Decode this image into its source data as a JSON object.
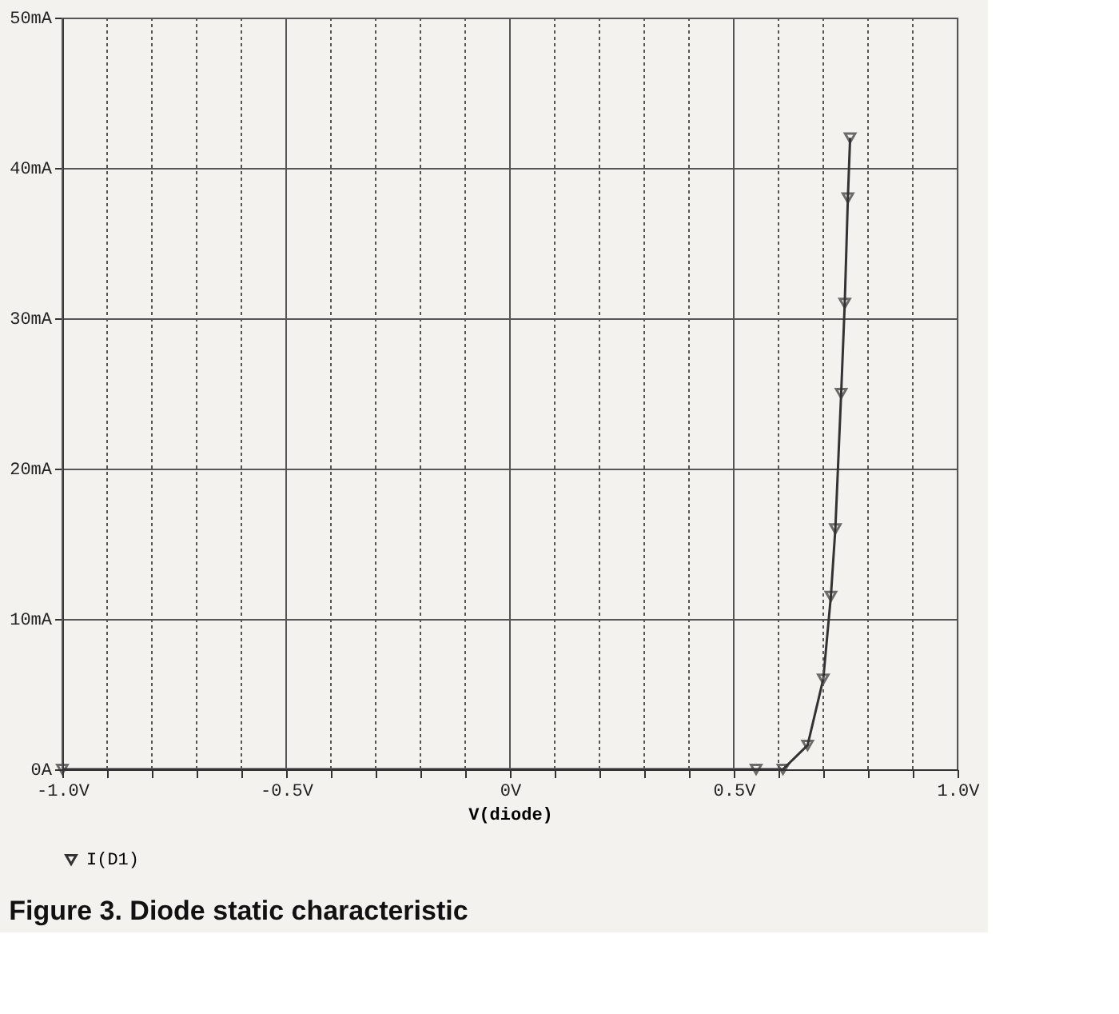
{
  "chart_data": {
    "type": "line",
    "xlabel": "V(diode)",
    "annotations": [
      "Figure 3. Diode static characteristic"
    ],
    "xlim": [
      -1.0,
      1.0
    ],
    "xticks": [
      {
        "value": -1.0,
        "label": "-1.0V"
      },
      {
        "value": -0.9,
        "label": null
      },
      {
        "value": -0.8,
        "label": null
      },
      {
        "value": -0.7,
        "label": null
      },
      {
        "value": -0.6,
        "label": null
      },
      {
        "value": -0.5,
        "label": "-0.5V"
      },
      {
        "value": -0.4,
        "label": null
      },
      {
        "value": -0.3,
        "label": null
      },
      {
        "value": -0.2,
        "label": null
      },
      {
        "value": -0.1,
        "label": null
      },
      {
        "value": 0,
        "label": "0V"
      },
      {
        "value": 0.1,
        "label": null
      },
      {
        "value": 0.2,
        "label": null
      },
      {
        "value": 0.3,
        "label": null
      },
      {
        "value": 0.4,
        "label": null
      },
      {
        "value": 0.5,
        "label": "0.5V"
      },
      {
        "value": 0.6,
        "label": null
      },
      {
        "value": 0.7,
        "label": null
      },
      {
        "value": 0.8,
        "label": null
      },
      {
        "value": 0.9,
        "label": null
      },
      {
        "value": 1.0,
        "label": "1.0V"
      }
    ],
    "ylim": [
      0,
      50
    ],
    "yticks": [
      {
        "value": 0,
        "label": "0A"
      },
      {
        "value": 10,
        "label": "10mA"
      },
      {
        "value": 20,
        "label": "20mA"
      },
      {
        "value": 30,
        "label": "30mA"
      },
      {
        "value": 40,
        "label": "40mA"
      },
      {
        "value": 50,
        "label": "50mA"
      }
    ],
    "grid": true,
    "legend": "bottom left",
    "marker": "triangle",
    "line_style": "solid",
    "series": [
      {
        "name": "I(D1)",
        "color": "#333333",
        "x": [
          -1.0,
          0.55,
          0.61,
          0.665,
          0.7,
          0.717,
          0.727,
          0.74,
          0.748,
          0.755,
          0.76
        ],
        "values": [
          0,
          0,
          0,
          1.6,
          6,
          11.5,
          16,
          25,
          31,
          38,
          42
        ]
      }
    ]
  }
}
